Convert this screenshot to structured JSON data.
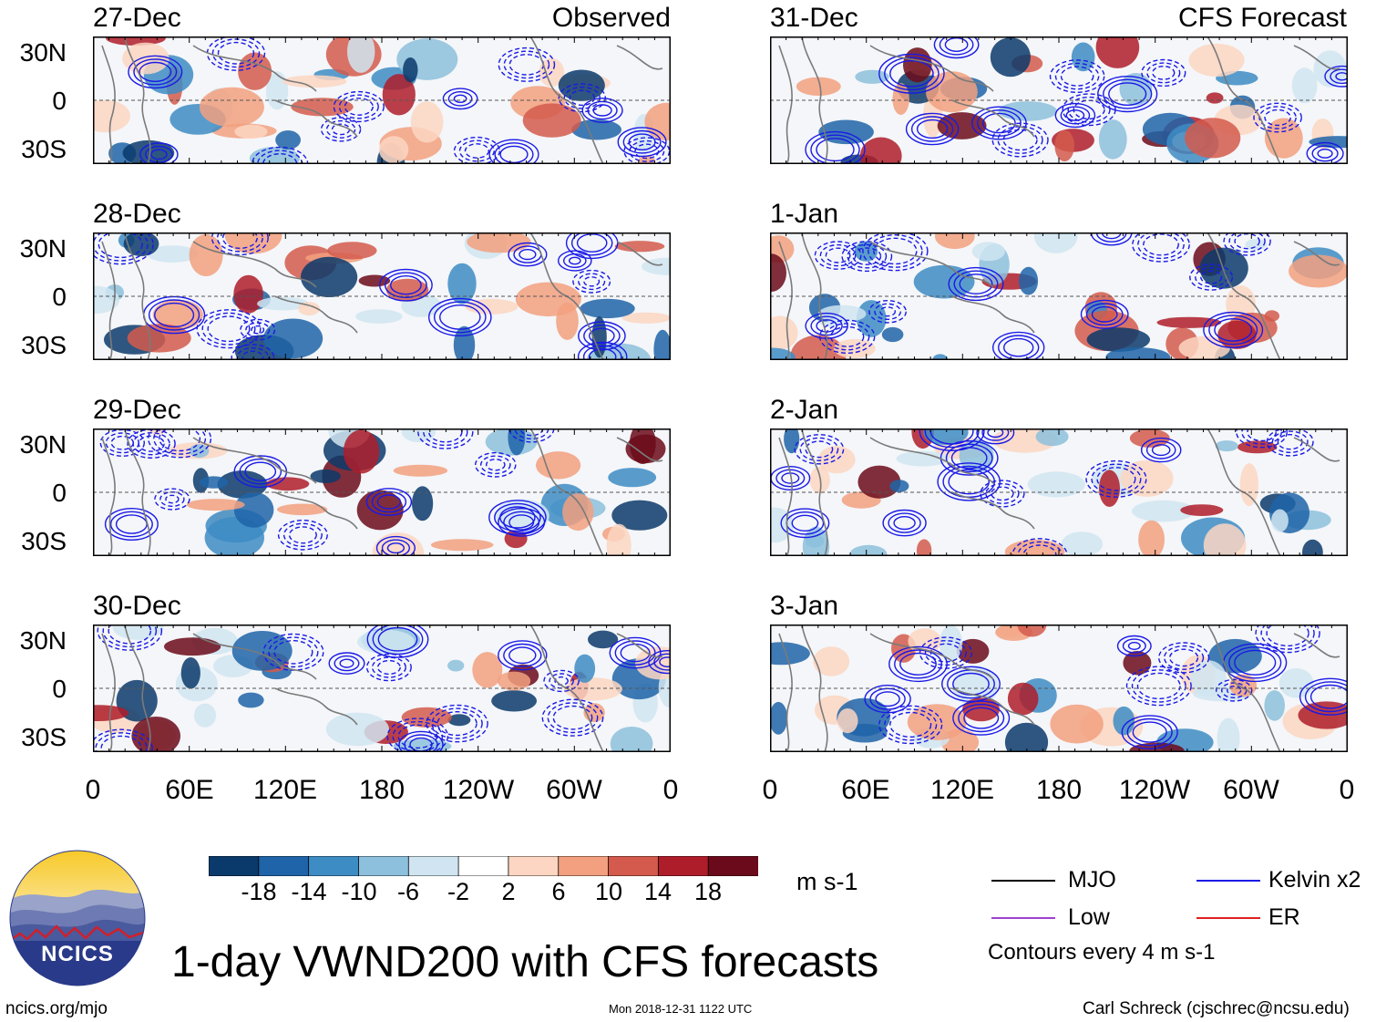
{
  "title": "1-day VWND200 with CFS forecasts",
  "observed_label": "Observed",
  "forecast_label": "CFS Forecast",
  "panels_left": [
    {
      "date": "27-Dec"
    },
    {
      "date": "28-Dec"
    },
    {
      "date": "29-Dec"
    },
    {
      "date": "30-Dec"
    }
  ],
  "panels_right": [
    {
      "date": "31-Dec"
    },
    {
      "date": "1-Jan"
    },
    {
      "date": "2-Jan"
    },
    {
      "date": "3-Jan"
    }
  ],
  "lat_labels": [
    "30N",
    "0",
    "30S"
  ],
  "lon_labels": [
    "0",
    "60E",
    "120E",
    "180",
    "120W",
    "60W",
    "0"
  ],
  "colorbar": {
    "ticks": [
      "-18",
      "-14",
      "-10",
      "-6",
      "-2",
      "2",
      "6",
      "10",
      "14",
      "18"
    ],
    "colors": [
      "#0a3a6b",
      "#1f64a8",
      "#3d8cc4",
      "#8cc0dc",
      "#d0e5f1",
      "#ffffff",
      "#fcd6c2",
      "#f2a07f",
      "#d35a4c",
      "#ae1d2a",
      "#6b0a1a"
    ],
    "units": "m s-1"
  },
  "legend": {
    "mjo": {
      "label": "MJO",
      "color": "#000000"
    },
    "kelvin": {
      "label": "Kelvin x2",
      "color": "#1a1ae6"
    },
    "low": {
      "label": "Low",
      "color": "#a040d0"
    },
    "er": {
      "label": "ER",
      "color": "#e02020"
    },
    "note": "Contours every 4 m s-1"
  },
  "footer": {
    "left": "ncics.org/mjo",
    "center": "Mon 2018-12-31 1122 UTC",
    "right": "Carl Schreck (cjschrec@ncsu.edu)"
  },
  "logo": {
    "text": "NCICS"
  },
  "chart_data": {
    "type": "heatmap",
    "title": "1-day VWND200 with CFS forecasts",
    "variable": "VWND200",
    "units": "m s-1",
    "x_ticks": [
      "0",
      "60E",
      "120E",
      "180",
      "120W",
      "60W",
      "0"
    ],
    "y_ticks": [
      "30N",
      "0",
      "30S"
    ],
    "xlim": [
      0,
      360
    ],
    "ylim": [
      -40,
      40
    ],
    "color_levels": [
      -18,
      -14,
      -10,
      -6,
      -2,
      2,
      6,
      10,
      14,
      18
    ],
    "contour_interval": 4,
    "observed_dates": [
      "27-Dec",
      "28-Dec",
      "29-Dec",
      "30-Dec"
    ],
    "forecast_dates": [
      "31-Dec",
      "1-Jan",
      "2-Jan",
      "3-Jan"
    ]
  }
}
